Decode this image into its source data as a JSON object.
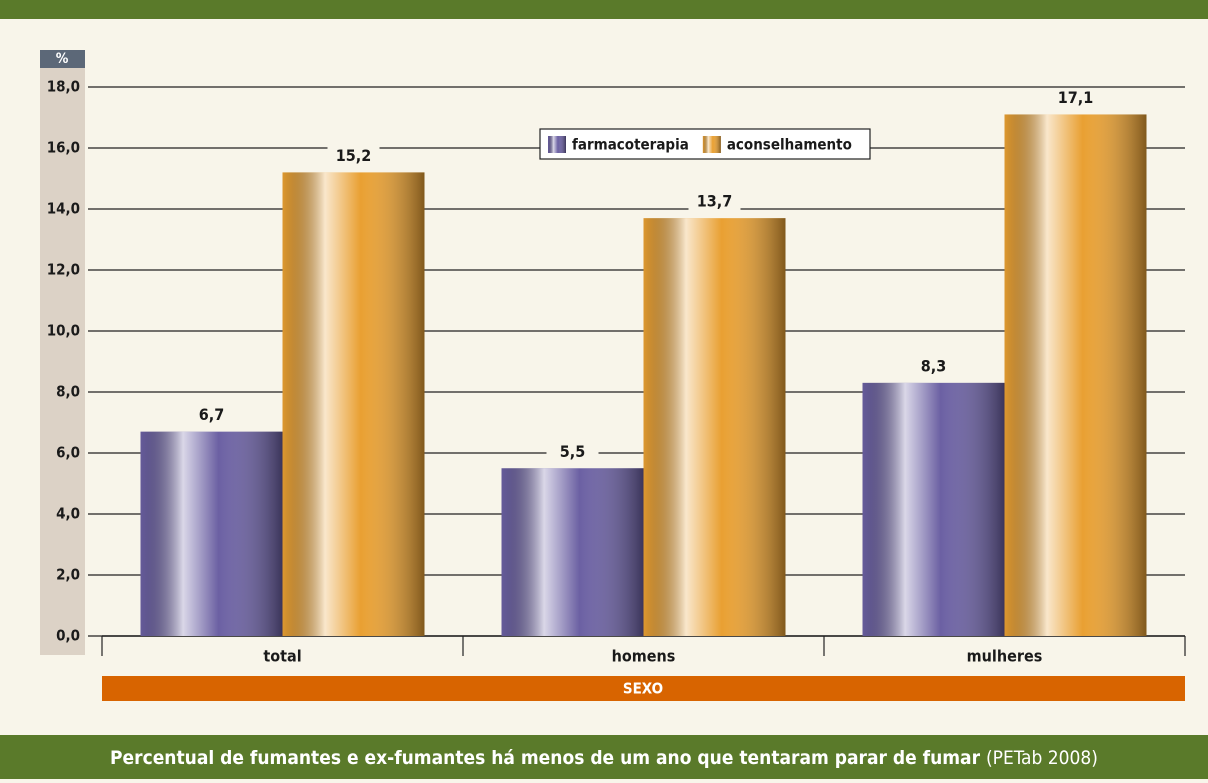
{
  "chart_data": {
    "type": "bar",
    "title": "Percentual de fumantes e ex-fumantes há menos de um ano que tentaram parar de fumar",
    "source": "(PETab 2008)",
    "ylabel": "%",
    "xlabel": "SEXO",
    "categories": [
      "total",
      "homens",
      "mulheres"
    ],
    "series": [
      {
        "name": "farmacoterapia",
        "color": "#6b60a3",
        "values": [
          6.7,
          5.5,
          8.3
        ],
        "value_labels": [
          "6,7",
          "5,5",
          "8,3"
        ]
      },
      {
        "name": "aconselhamento",
        "color": "#e9a032",
        "values": [
          15.2,
          13.7,
          17.1
        ],
        "value_labels": [
          "15,2",
          "13,7",
          "17,1"
        ]
      }
    ],
    "ylim": [
      0,
      18
    ],
    "yticks": [
      {
        "value": 0,
        "label": "0,0"
      },
      {
        "value": 2,
        "label": "2,0"
      },
      {
        "value": 4,
        "label": "4,0"
      },
      {
        "value": 6,
        "label": "6,0"
      },
      {
        "value": 8,
        "label": "8,0"
      },
      {
        "value": 10,
        "label": "10,0"
      },
      {
        "value": 12,
        "label": "12,0"
      },
      {
        "value": 14,
        "label": "14,0"
      },
      {
        "value": 16,
        "label": "16,0"
      },
      {
        "value": 18,
        "label": "18,0"
      }
    ],
    "grid": true,
    "legend": "top"
  }
}
